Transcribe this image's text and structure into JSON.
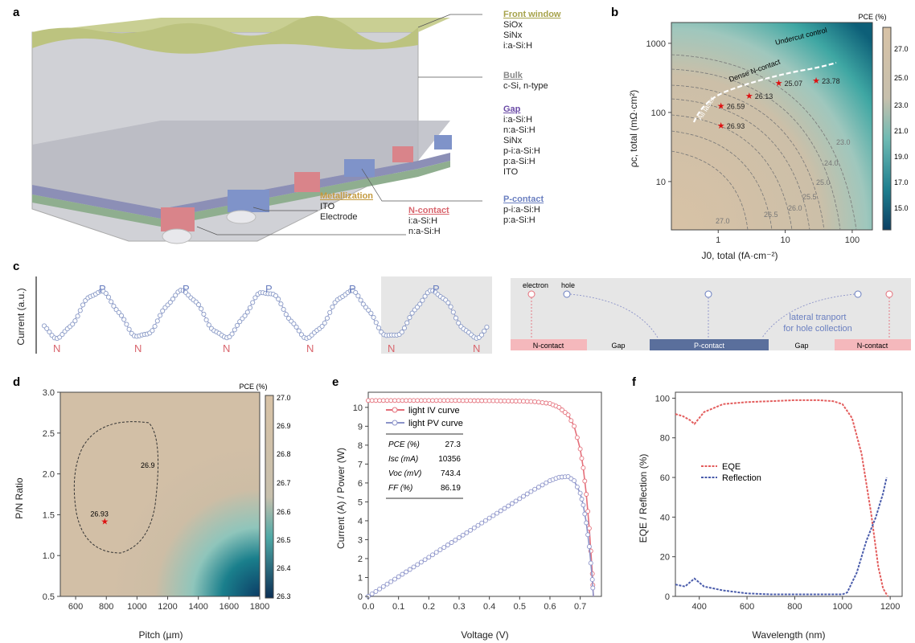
{
  "panel_a": {
    "label": "a",
    "front_window": {
      "title": "Front window",
      "lines": [
        "SiOx",
        "SiNx",
        "i:a-Si:H"
      ]
    },
    "bulk": {
      "title": "Bulk",
      "lines": [
        "c-Si, n-type"
      ]
    },
    "gap": {
      "title": "Gap",
      "lines": [
        "i:a-Si:H",
        "n:a-Si:H",
        "SiNx",
        "p-i:a-Si:H",
        "p:a-Si:H",
        "ITO"
      ]
    },
    "metallization": {
      "title": "Metallization",
      "lines": [
        "ITO",
        "Electrode"
      ]
    },
    "n_contact": {
      "title": "N-contact",
      "lines": [
        "i:a-Si:H",
        "n:a-Si:H"
      ]
    },
    "p_contact": {
      "title": "P-contact",
      "lines": [
        "p-i:a-Si:H",
        "p:a-Si:H"
      ]
    },
    "colors": {
      "front": "#c9cf93",
      "bulk": "#c5c6cb",
      "n": "#d9848a",
      "p": "#7f93c9",
      "base": "#8fae8f"
    }
  },
  "panel_b": {
    "label": "b",
    "colorbar_title": "PCE (%)",
    "colorbar_ticks": [
      "27.0",
      "25.0",
      "23.0",
      "21.0",
      "19.0",
      "17.0",
      "15.0"
    ],
    "xlabel": "J0, total (fA·cm⁻²)",
    "ylabel": "ρc, total (mΩ·cm²)",
    "xticks": [
      "1",
      "10",
      "100"
    ],
    "yticks": [
      "10",
      "100",
      "1000"
    ],
    "contour_labels": [
      "27.0",
      "26.5",
      "26.0",
      "25.5",
      "25.0",
      "24.0",
      "23.0"
    ],
    "arrow_labels": [
      "All laser",
      "Dense N-contact",
      "Undercut control"
    ],
    "points": [
      {
        "label": "26.93",
        "j0": 1.1,
        "rho": 65
      },
      {
        "label": "26.59",
        "j0": 1.1,
        "rho": 125
      },
      {
        "label": "26.13",
        "j0": 2.9,
        "rho": 175
      },
      {
        "label": "25.07",
        "j0": 8.0,
        "rho": 270
      },
      {
        "label": "23.78",
        "j0": 29,
        "rho": 290
      }
    ]
  },
  "panel_c": {
    "label": "c",
    "ylabel": "Current (a.u.)",
    "peak_labels": [
      "P",
      "P",
      "P",
      "P",
      "P"
    ],
    "trough_labels": [
      "N",
      "N",
      "N",
      "N",
      "N",
      "N"
    ],
    "diagram": {
      "electron": "electron",
      "hole": "hole",
      "lateral": [
        "lateral tranport",
        "for hole collection"
      ],
      "segments": [
        "N-contact",
        "Gap",
        "P-contact",
        "Gap",
        "N-contact"
      ]
    }
  },
  "panel_d": {
    "label": "d",
    "colorbar_title": "PCE (%)",
    "colorbar_ticks": [
      "27.0",
      "26.9",
      "26.8",
      "26.7",
      "26.6",
      "26.5",
      "26.4",
      "26.3"
    ],
    "xlabel": "Pitch (µm)",
    "ylabel": "P/N Ratio",
    "xticks": [
      "600",
      "800",
      "1000",
      "1200",
      "1400",
      "1600",
      "1800"
    ],
    "yticks": [
      "0.5",
      "1.0",
      "1.5",
      "2.0",
      "2.5",
      "3.0"
    ],
    "contour_label": "26.9",
    "point_label": "26.93"
  },
  "panel_e": {
    "label": "e",
    "xlabel": "Voltage (V)",
    "ylabel": "Current (A) / Power (W)",
    "xticks": [
      "0.0",
      "0.1",
      "0.2",
      "0.3",
      "0.4",
      "0.5",
      "0.6",
      "0.7"
    ],
    "yticks": [
      "0",
      "1",
      "2",
      "3",
      "4",
      "5",
      "6",
      "7",
      "8",
      "9",
      "10"
    ],
    "legend": [
      "light IV curve",
      "light PV curve"
    ],
    "table": [
      {
        "k": "PCE (%)",
        "v": "27.3"
      },
      {
        "k": "Isc (mA)",
        "v": "10356"
      },
      {
        "k": "Voc (mV)",
        "v": "743.4"
      },
      {
        "k": "FF (%)",
        "v": "86.19"
      }
    ]
  },
  "panel_f": {
    "label": "f",
    "xlabel": "Wavelength (nm)",
    "ylabel": "EQE / Reflection (%)",
    "xticks": [
      "400",
      "600",
      "800",
      "1000",
      "1200"
    ],
    "yticks": [
      "0",
      "20",
      "40",
      "60",
      "80",
      "100"
    ],
    "legend": [
      "EQE",
      "Reflection"
    ]
  },
  "chart_data": [
    {
      "type": "line",
      "panel": "e",
      "xlim": [
        0,
        0.77
      ],
      "ylim": [
        0,
        10.8
      ],
      "series": [
        {
          "name": "light IV curve",
          "color": "#e46f7a",
          "x": [
            0.0,
            0.1,
            0.2,
            0.3,
            0.4,
            0.5,
            0.55,
            0.6,
            0.63,
            0.66,
            0.68,
            0.7,
            0.71,
            0.72,
            0.73,
            0.74,
            0.7434
          ],
          "y": [
            10.36,
            10.36,
            10.36,
            10.36,
            10.35,
            10.33,
            10.3,
            10.2,
            10.0,
            9.6,
            9.0,
            7.8,
            6.8,
            5.4,
            3.6,
            1.2,
            0.0
          ]
        },
        {
          "name": "light PV curve",
          "color": "#8c93c9",
          "x": [
            0.0,
            0.1,
            0.2,
            0.3,
            0.4,
            0.5,
            0.55,
            0.6,
            0.63,
            0.66,
            0.68,
            0.7,
            0.71,
            0.72,
            0.73,
            0.74,
            0.7434
          ],
          "y": [
            0.0,
            1.04,
            2.07,
            3.11,
            4.14,
            5.17,
            5.67,
            6.12,
            6.3,
            6.34,
            6.12,
            5.46,
            4.83,
            3.89,
            2.63,
            0.89,
            0.0
          ]
        }
      ]
    },
    {
      "type": "line",
      "panel": "f",
      "xlim": [
        300,
        1250
      ],
      "ylim": [
        0,
        103
      ],
      "series": [
        {
          "name": "EQE",
          "color": "#e35d5d",
          "x": [
            300,
            330,
            360,
            380,
            420,
            500,
            600,
            700,
            800,
            900,
            960,
            1000,
            1040,
            1080,
            1120,
            1150,
            1170,
            1190
          ],
          "y": [
            92,
            91,
            89,
            87,
            93,
            97,
            98,
            98.5,
            99,
            99,
            98.5,
            97,
            90,
            72,
            42,
            15,
            4,
            0
          ]
        },
        {
          "name": "Reflection",
          "color": "#4a5cab",
          "x": [
            300,
            340,
            380,
            420,
            500,
            600,
            700,
            800,
            900,
            1000,
            1020,
            1060,
            1100,
            1140,
            1170,
            1185
          ],
          "y": [
            6,
            5,
            9,
            5,
            3,
            1.5,
            1,
            1,
            1,
            1,
            2,
            12,
            28,
            40,
            52,
            60
          ]
        }
      ]
    },
    {
      "type": "scatter",
      "panel": "b",
      "xscale": "log",
      "yscale": "log",
      "xlim": [
        0.2,
        200
      ],
      "ylim": [
        2,
        2000
      ],
      "x": [
        1.1,
        1.1,
        2.9,
        8.0,
        29
      ],
      "y": [
        65,
        125,
        175,
        270,
        290
      ],
      "labels": [
        "26.93",
        "26.59",
        "26.13",
        "25.07",
        "23.78"
      ]
    },
    {
      "type": "scatter",
      "panel": "d",
      "xlim": [
        500,
        1800
      ],
      "ylim": [
        0.5,
        3.0
      ],
      "x": [
        790
      ],
      "y": [
        1.42
      ],
      "labels": [
        "26.93"
      ]
    }
  ]
}
